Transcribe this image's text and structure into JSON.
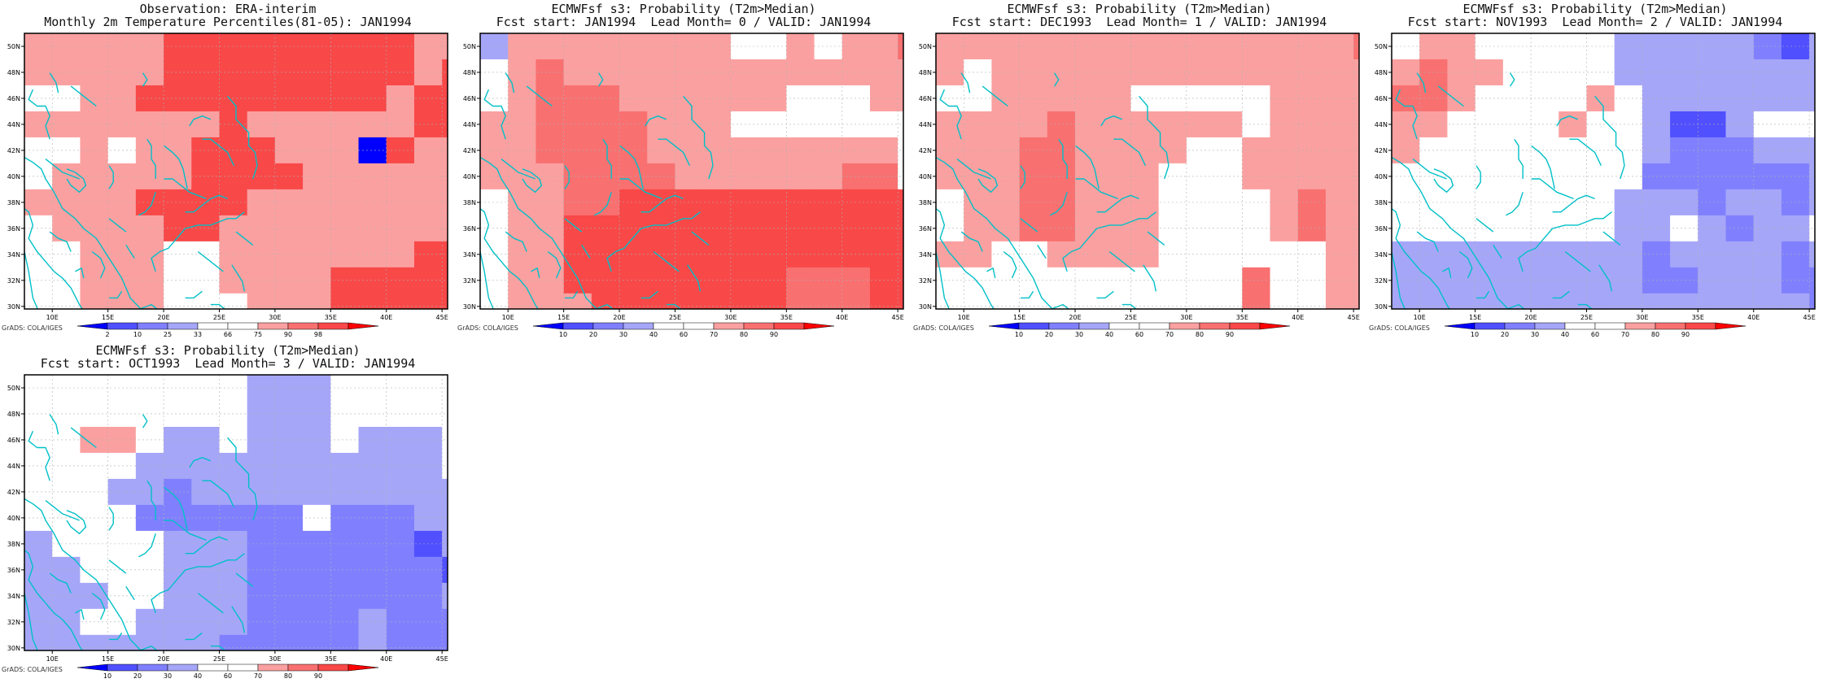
{
  "credit": "GrADS: COLA/IGES",
  "axes": {
    "lon_ticks": [
      "10E",
      "15E",
      "20E",
      "25E",
      "30E",
      "35E",
      "40E",
      "45E"
    ],
    "lat_ticks": [
      "30N",
      "32N",
      "34N",
      "36N",
      "38N",
      "40N",
      "42N",
      "44N",
      "46N",
      "48N",
      "50N"
    ]
  },
  "colors": {
    "land_outline": "#00c0c8",
    "grid": "#b0b0b0",
    "obs_scale": [
      "#0000ff",
      "#5050ff",
      "#8080ff",
      "#a6a6f8",
      "#ffffff",
      "#ffffff",
      "#fba0a0",
      "#f97070",
      "#f84848",
      "#ff0000"
    ],
    "prob_scale": [
      "#0000ff",
      "#5050ff",
      "#8080ff",
      "#a6a6f8",
      "#ffffff",
      "#ffffff",
      "#fba0a0",
      "#f97070",
      "#f84848",
      "#ff0000"
    ]
  },
  "chart_data": [
    {
      "type": "heatmap",
      "title": "Observation: ERA-interim",
      "subtitle": "Monthly 2m Temperature Percentiles(81-05): JAN1994",
      "colorbar_labels": [
        "2",
        "10",
        "25",
        "33",
        "66",
        "75",
        "90",
        "98"
      ],
      "levels": [
        2,
        10,
        25,
        33,
        66,
        75,
        90,
        98
      ],
      "lon_start": 7.5,
      "lon_step": 2.5,
      "lat_start": 51.0,
      "lat_step": -2.0,
      "xlim": [
        7.5,
        45.5
      ],
      "ylim": [
        29.8,
        51.0
      ],
      "grid": [
        [
          80,
          80,
          80,
          80,
          80,
          98,
          98,
          98,
          98,
          98,
          98,
          98,
          98,
          98,
          80,
          80
        ],
        [
          80,
          80,
          80,
          80,
          80,
          98,
          98,
          98,
          98,
          98,
          98,
          98,
          98,
          98,
          80,
          98
        ],
        [
          70,
          70,
          80,
          80,
          98,
          98,
          98,
          98,
          98,
          98,
          98,
          98,
          98,
          80,
          98,
          98
        ],
        [
          80,
          80,
          80,
          80,
          80,
          80,
          80,
          98,
          80,
          80,
          80,
          80,
          80,
          80,
          98,
          98
        ],
        [
          70,
          70,
          80,
          70,
          80,
          80,
          98,
          98,
          98,
          80,
          80,
          80,
          0,
          98,
          80,
          80
        ],
        [
          70,
          80,
          80,
          80,
          80,
          80,
          98,
          98,
          98,
          98,
          80,
          80,
          80,
          80,
          80,
          80
        ],
        [
          80,
          80,
          80,
          80,
          98,
          98,
          98,
          98,
          80,
          80,
          80,
          80,
          80,
          80,
          80,
          80
        ],
        [
          70,
          80,
          80,
          80,
          80,
          98,
          98,
          80,
          80,
          80,
          80,
          80,
          80,
          80,
          80,
          80
        ],
        [
          70,
          70,
          80,
          80,
          80,
          70,
          70,
          80,
          80,
          80,
          80,
          80,
          80,
          80,
          98,
          98
        ],
        [
          70,
          70,
          80,
          80,
          80,
          70,
          70,
          80,
          80,
          80,
          80,
          98,
          98,
          98,
          98,
          98
        ],
        [
          70,
          70,
          80,
          80,
          80,
          70,
          70,
          70,
          80,
          80,
          80,
          98,
          98,
          98,
          98,
          98
        ],
        [
          70,
          70,
          80,
          80,
          80,
          80,
          80,
          80,
          80,
          80,
          80,
          98,
          98,
          98,
          98,
          98
        ],
        [
          70,
          70,
          80,
          80,
          80,
          80,
          80,
          80,
          80,
          80,
          80,
          98,
          98,
          98,
          98,
          98
        ]
      ]
    },
    {
      "type": "heatmap",
      "title": "ECMWFsf s3: Probability (T2m>Median)",
      "subtitle": "Fcst start: JAN1994  Lead Month= 0 / VALID: JAN1994",
      "colorbar_labels": [
        "10",
        "20",
        "30",
        "40",
        "60",
        "70",
        "80",
        "90"
      ],
      "levels": [
        10,
        20,
        30,
        40,
        60,
        70,
        80,
        90
      ],
      "lon_start": 7.5,
      "lon_step": 2.5,
      "lat_start": 51.0,
      "lat_step": -2.0,
      "xlim": [
        7.5,
        45.5
      ],
      "ylim": [
        29.8,
        51.0
      ],
      "grid": [
        [
          35,
          75,
          75,
          75,
          75,
          75,
          75,
          75,
          75,
          50,
          50,
          75,
          50,
          75,
          75,
          85
        ],
        [
          50,
          75,
          85,
          75,
          75,
          75,
          75,
          75,
          75,
          75,
          75,
          75,
          75,
          75,
          75,
          75
        ],
        [
          50,
          75,
          85,
          85,
          85,
          75,
          75,
          75,
          75,
          75,
          75,
          50,
          50,
          50,
          75,
          75
        ],
        [
          75,
          75,
          85,
          85,
          85,
          85,
          75,
          75,
          75,
          50,
          50,
          50,
          50,
          50,
          50,
          50
        ],
        [
          75,
          75,
          85,
          85,
          85,
          85,
          75,
          75,
          75,
          75,
          75,
          75,
          75,
          75,
          75,
          50
        ],
        [
          75,
          75,
          75,
          85,
          85,
          85,
          85,
          75,
          75,
          75,
          75,
          75,
          75,
          85,
          85,
          50
        ],
        [
          65,
          75,
          75,
          85,
          85,
          95,
          95,
          95,
          95,
          95,
          95,
          95,
          95,
          95,
          95,
          95
        ],
        [
          65,
          75,
          75,
          95,
          95,
          95,
          95,
          95,
          95,
          95,
          95,
          95,
          95,
          95,
          95,
          95
        ],
        [
          65,
          75,
          75,
          95,
          95,
          95,
          95,
          95,
          95,
          95,
          95,
          95,
          95,
          95,
          95,
          95
        ],
        [
          50,
          75,
          75,
          95,
          95,
          95,
          95,
          95,
          95,
          95,
          95,
          85,
          85,
          85,
          95,
          95
        ],
        [
          50,
          75,
          75,
          75,
          95,
          95,
          95,
          95,
          95,
          95,
          95,
          85,
          85,
          85,
          95,
          95
        ],
        [
          50,
          75,
          75,
          75,
          75,
          95,
          95,
          95,
          95,
          95,
          95,
          85,
          85,
          85,
          95,
          95
        ],
        [
          50,
          75,
          75,
          75,
          75,
          95,
          95,
          95,
          95,
          95,
          95,
          85,
          85,
          85,
          95,
          95
        ]
      ]
    },
    {
      "type": "heatmap",
      "title": "ECMWFsf s3: Probability (T2m>Median)",
      "subtitle": "Fcst start: DEC1993  Lead Month= 1 / VALID: JAN1994",
      "colorbar_labels": [
        "10",
        "20",
        "30",
        "40",
        "60",
        "70",
        "80",
        "90"
      ],
      "levels": [
        10,
        20,
        30,
        40,
        60,
        70,
        80,
        90
      ],
      "lon_start": 7.5,
      "lon_step": 2.5,
      "lat_start": 51.0,
      "lat_step": -2.0,
      "xlim": [
        7.5,
        45.5
      ],
      "ylim": [
        29.8,
        51.0
      ],
      "grid": [
        [
          75,
          75,
          75,
          75,
          75,
          75,
          75,
          75,
          75,
          75,
          75,
          75,
          75,
          75,
          75,
          85
        ],
        [
          75,
          50,
          75,
          75,
          75,
          75,
          75,
          75,
          75,
          75,
          75,
          75,
          75,
          75,
          75,
          75
        ],
        [
          50,
          50,
          75,
          75,
          75,
          75,
          75,
          50,
          50,
          50,
          50,
          50,
          75,
          75,
          75,
          75
        ],
        [
          75,
          75,
          75,
          75,
          85,
          75,
          75,
          75,
          75,
          75,
          75,
          50,
          75,
          75,
          75,
          75
        ],
        [
          75,
          75,
          75,
          85,
          85,
          75,
          75,
          75,
          75,
          50,
          65,
          75,
          75,
          75,
          75,
          75
        ],
        [
          75,
          75,
          75,
          85,
          85,
          75,
          75,
          75,
          50,
          50,
          65,
          75,
          75,
          75,
          75,
          75
        ],
        [
          50,
          75,
          75,
          85,
          85,
          75,
          75,
          75,
          50,
          50,
          65,
          65,
          75,
          85,
          75,
          75
        ],
        [
          50,
          75,
          75,
          85,
          85,
          75,
          75,
          75,
          50,
          50,
          65,
          65,
          75,
          85,
          75,
          75
        ],
        [
          75,
          75,
          65,
          65,
          75,
          75,
          75,
          75,
          50,
          50,
          65,
          65,
          50,
          50,
          75,
          75
        ],
        [
          50,
          50,
          50,
          50,
          65,
          65,
          65,
          65,
          65,
          65,
          65,
          85,
          65,
          65,
          75,
          75
        ],
        [
          50,
          50,
          50,
          50,
          65,
          65,
          65,
          65,
          65,
          65,
          65,
          85,
          65,
          65,
          75,
          75
        ],
        [
          50,
          50,
          50,
          50,
          65,
          65,
          65,
          65,
          65,
          65,
          65,
          85,
          75,
          65,
          75,
          75
        ],
        [
          50,
          50,
          50,
          50,
          65,
          65,
          65,
          65,
          65,
          65,
          65,
          65,
          65,
          65,
          75,
          75
        ]
      ]
    },
    {
      "type": "heatmap",
      "title": "ECMWFsf s3: Probability (T2m>Median)",
      "subtitle": "Fcst start: NOV1993  Lead Month= 2 / VALID: JAN1994",
      "colorbar_labels": [
        "10",
        "20",
        "30",
        "40",
        "60",
        "70",
        "80",
        "90"
      ],
      "levels": [
        10,
        20,
        30,
        40,
        60,
        70,
        80,
        90
      ],
      "lon_start": 7.5,
      "lon_step": 2.5,
      "lat_start": 51.0,
      "lat_step": -2.0,
      "xlim": [
        7.5,
        45.5
      ],
      "ylim": [
        29.8,
        51.0
      ],
      "grid": [
        [
          50,
          75,
          75,
          50,
          50,
          50,
          50,
          50,
          35,
          35,
          35,
          35,
          35,
          25,
          15,
          35
        ],
        [
          75,
          85,
          75,
          75,
          50,
          50,
          50,
          50,
          35,
          35,
          35,
          35,
          35,
          35,
          35,
          35
        ],
        [
          85,
          85,
          75,
          50,
          50,
          50,
          50,
          75,
          50,
          35,
          35,
          35,
          35,
          35,
          35,
          35
        ],
        [
          75,
          75,
          50,
          50,
          50,
          50,
          75,
          50,
          50,
          35,
          15,
          15,
          35,
          50,
          50,
          50
        ],
        [
          75,
          50,
          50,
          50,
          50,
          50,
          50,
          50,
          50,
          35,
          25,
          25,
          25,
          35,
          35,
          35
        ],
        [
          50,
          50,
          50,
          50,
          50,
          50,
          50,
          50,
          50,
          25,
          25,
          25,
          25,
          25,
          25,
          35
        ],
        [
          50,
          50,
          50,
          50,
          50,
          50,
          50,
          50,
          35,
          35,
          35,
          25,
          35,
          35,
          25,
          35
        ],
        [
          50,
          50,
          50,
          50,
          50,
          50,
          50,
          50,
          35,
          35,
          50,
          35,
          25,
          35,
          35,
          50
        ],
        [
          35,
          35,
          35,
          35,
          35,
          35,
          35,
          35,
          35,
          25,
          35,
          35,
          35,
          35,
          25,
          35
        ],
        [
          35,
          35,
          35,
          35,
          35,
          35,
          35,
          35,
          35,
          25,
          25,
          35,
          35,
          35,
          25,
          25
        ],
        [
          35,
          35,
          35,
          35,
          35,
          35,
          35,
          35,
          35,
          35,
          35,
          35,
          35,
          35,
          35,
          25
        ],
        [
          35,
          35,
          25,
          25,
          35,
          35,
          35,
          35,
          35,
          35,
          35,
          35,
          35,
          35,
          35,
          35
        ],
        [
          35,
          35,
          25,
          25,
          35,
          35,
          35,
          35,
          35,
          35,
          35,
          35,
          35,
          35,
          35,
          35
        ]
      ]
    },
    {
      "type": "heatmap",
      "title": "ECMWFsf s3: Probability (T2m>Median)",
      "subtitle": "Fcst start: OCT1993  Lead Month= 3 / VALID: JAN1994",
      "colorbar_labels": [
        "10",
        "20",
        "30",
        "40",
        "60",
        "70",
        "80",
        "90"
      ],
      "levels": [
        10,
        20,
        30,
        40,
        60,
        70,
        80,
        90
      ],
      "lon_start": 7.5,
      "lon_step": 2.5,
      "lat_start": 51.0,
      "lat_step": -2.0,
      "xlim": [
        7.5,
        45.5
      ],
      "ylim": [
        29.8,
        51.0
      ],
      "grid": [
        [
          50,
          50,
          50,
          50,
          50,
          50,
          50,
          50,
          35,
          35,
          35,
          50,
          50,
          50,
          50,
          50
        ],
        [
          50,
          50,
          50,
          50,
          50,
          50,
          50,
          50,
          35,
          35,
          35,
          50,
          50,
          50,
          50,
          50
        ],
        [
          50,
          50,
          75,
          75,
          50,
          35,
          35,
          50,
          35,
          35,
          35,
          50,
          35,
          35,
          35,
          50
        ],
        [
          50,
          50,
          50,
          50,
          35,
          35,
          35,
          35,
          35,
          35,
          35,
          35,
          35,
          35,
          35,
          50
        ],
        [
          50,
          50,
          50,
          35,
          35,
          25,
          35,
          35,
          35,
          35,
          35,
          35,
          35,
          35,
          35,
          35
        ],
        [
          50,
          50,
          50,
          50,
          25,
          25,
          25,
          25,
          25,
          25,
          50,
          25,
          25,
          25,
          35,
          35
        ],
        [
          35,
          50,
          50,
          50,
          50,
          35,
          35,
          35,
          25,
          25,
          25,
          25,
          25,
          25,
          15,
          35
        ],
        [
          35,
          35,
          50,
          50,
          50,
          35,
          35,
          35,
          25,
          25,
          25,
          25,
          25,
          25,
          25,
          15
        ],
        [
          35,
          35,
          35,
          50,
          50,
          35,
          35,
          35,
          25,
          25,
          25,
          25,
          25,
          25,
          25,
          35
        ],
        [
          35,
          35,
          50,
          50,
          35,
          35,
          35,
          35,
          25,
          25,
          25,
          25,
          35,
          25,
          25,
          25
        ],
        [
          35,
          35,
          35,
          35,
          35,
          35,
          35,
          25,
          25,
          25,
          25,
          25,
          35,
          25,
          25,
          25
        ],
        [
          35,
          35,
          35,
          35,
          35,
          35,
          35,
          25,
          25,
          25,
          15,
          35,
          25,
          25,
          25,
          25
        ],
        [
          35,
          35,
          35,
          35,
          35,
          35,
          35,
          25,
          25,
          15,
          15,
          25,
          25,
          25,
          25,
          25
        ]
      ]
    }
  ]
}
